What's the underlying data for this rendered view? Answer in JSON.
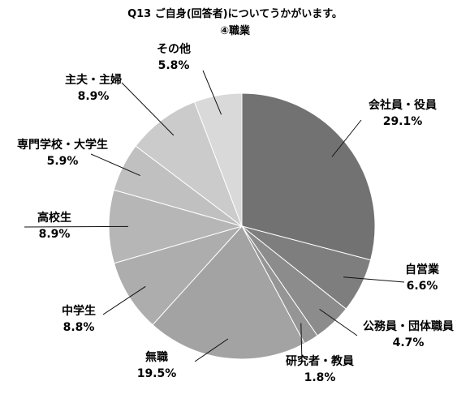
{
  "chart_data": {
    "type": "pie",
    "title": "Q13 ご自身(回答者)についてうかがいます。",
    "subtitle": "④職業",
    "unit": "%",
    "slices": [
      {
        "name": "会社員・役員",
        "value": 29.1,
        "label": "29.1%",
        "color": "#727272"
      },
      {
        "name": "自営業",
        "value": 6.6,
        "label": "6.6%",
        "color": "#7e7e7e"
      },
      {
        "name": "公務員・団体職員",
        "value": 4.7,
        "label": "4.7%",
        "color": "#8c8c8c"
      },
      {
        "name": "研究者・教員",
        "value": 1.8,
        "label": "1.8%",
        "color": "#959595"
      },
      {
        "name": "無職",
        "value": 19.5,
        "label": "19.5%",
        "color": "#a3a3a3"
      },
      {
        "name": "中学生",
        "value": 8.8,
        "label": "8.8%",
        "color": "#adadad"
      },
      {
        "name": "高校生",
        "value": 8.9,
        "label": "8.9%",
        "color": "#b6b6b6"
      },
      {
        "name": "専門学校・大学生",
        "value": 5.9,
        "label": "5.9%",
        "color": "#c0c0c0"
      },
      {
        "name": "主夫・主婦",
        "value": 8.9,
        "label": "8.9%",
        "color": "#cbcbcb"
      },
      {
        "name": "その他",
        "value": 5.8,
        "label": "5.8%",
        "color": "#d9d9d9"
      }
    ]
  }
}
